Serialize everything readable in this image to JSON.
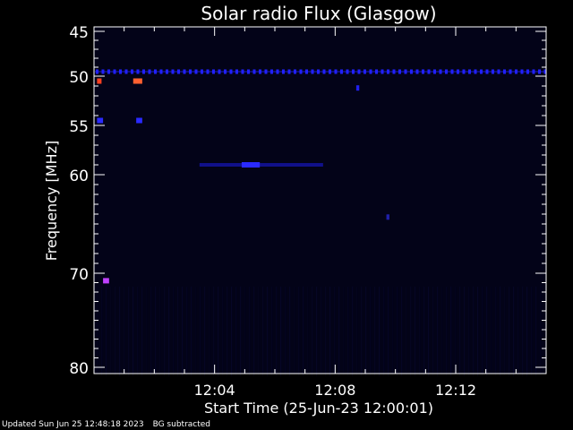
{
  "chart_data": {
    "type": "heatmap",
    "title": "Solar radio Flux (Glasgow)",
    "xlabel": "Start Time (25-Jun-23 12:00:01)",
    "ylabel": "Frequency [MHz]",
    "x_tick_labels": [
      "12:04",
      "12:08",
      "12:12"
    ],
    "x_ticks_minutes": [
      4,
      8,
      12
    ],
    "xlim_minutes": [
      0,
      15
    ],
    "y_tick_labels": [
      "45",
      "50",
      "55",
      "60",
      "70",
      "80"
    ],
    "y_ticks": [
      45,
      50,
      55,
      60,
      70,
      80
    ],
    "ylim": [
      45,
      80
    ],
    "y_axis_inverted": true,
    "colormap": [
      "#000000",
      "#0000ff",
      "#ff3030",
      "#ffa040"
    ],
    "features": [
      {
        "kind": "persistent interference line",
        "frequency_mhz": 49.5,
        "t_start_min": 0,
        "t_end_min": 15,
        "intensity": "medium",
        "color": "#2020ff"
      },
      {
        "kind": "burst",
        "frequency_mhz": 50.5,
        "t_start_min": 0.1,
        "t_end_min": 0.25,
        "intensity": "high",
        "color": "#ff4020"
      },
      {
        "kind": "burst",
        "frequency_mhz": 50.5,
        "t_start_min": 1.3,
        "t_end_min": 1.6,
        "intensity": "high",
        "color": "#ff6030"
      },
      {
        "kind": "burst",
        "frequency_mhz": 54.5,
        "t_start_min": 0.1,
        "t_end_min": 0.3,
        "intensity": "medium",
        "color": "#2a2aff"
      },
      {
        "kind": "burst",
        "frequency_mhz": 54.5,
        "t_start_min": 1.4,
        "t_end_min": 1.6,
        "intensity": "medium",
        "color": "#2a2aff"
      },
      {
        "kind": "band",
        "frequency_mhz": 59.0,
        "t_start_min": 3.5,
        "t_end_min": 7.6,
        "intensity": "low",
        "color": "#10108a"
      },
      {
        "kind": "burst",
        "frequency_mhz": 59.0,
        "t_start_min": 4.9,
        "t_end_min": 5.5,
        "intensity": "medium",
        "color": "#2a2aff"
      },
      {
        "kind": "burst",
        "frequency_mhz": 51.2,
        "t_start_min": 8.7,
        "t_end_min": 8.8,
        "intensity": "medium",
        "color": "#2020ee"
      },
      {
        "kind": "burst",
        "frequency_mhz": 70.8,
        "t_start_min": 0.3,
        "t_end_min": 0.5,
        "intensity": "high",
        "color": "#c040ff"
      },
      {
        "kind": "burst",
        "frequency_mhz": 64.3,
        "t_start_min": 9.7,
        "t_end_min": 9.8,
        "intensity": "low",
        "color": "#2020aa"
      }
    ],
    "grid": false,
    "legend": "none"
  },
  "footer": {
    "updated": "Updated Sun Jun 25 12:48:18 2023",
    "bg_note": "BG subtracted"
  },
  "colors": {
    "background": "#000000",
    "axis": "#ffffff",
    "plot_background": "#030318"
  }
}
